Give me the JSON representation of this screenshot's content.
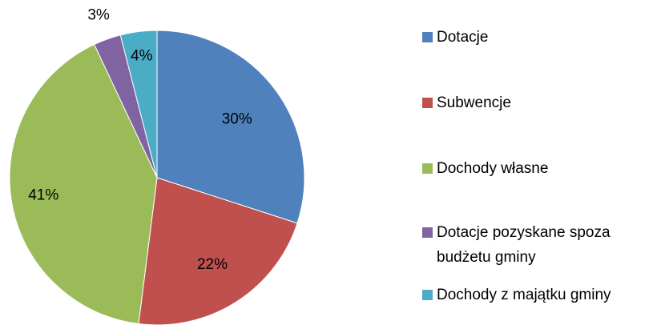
{
  "chart_data": {
    "type": "pie",
    "categories": [
      "Dotacje",
      "Subwencje",
      "Dochody własne",
      "Dotacje pozyskane spoza budżetu gminy",
      "Dochody z majątku gminy"
    ],
    "values": [
      30,
      22,
      41,
      3,
      4
    ],
    "value_labels": [
      "30%",
      "22%",
      "41%",
      "3%",
      "4%"
    ],
    "colors": [
      "#4f81bd",
      "#c0504d",
      "#9bbb59",
      "#8064a2",
      "#4bacc6"
    ],
    "legend": "right"
  }
}
